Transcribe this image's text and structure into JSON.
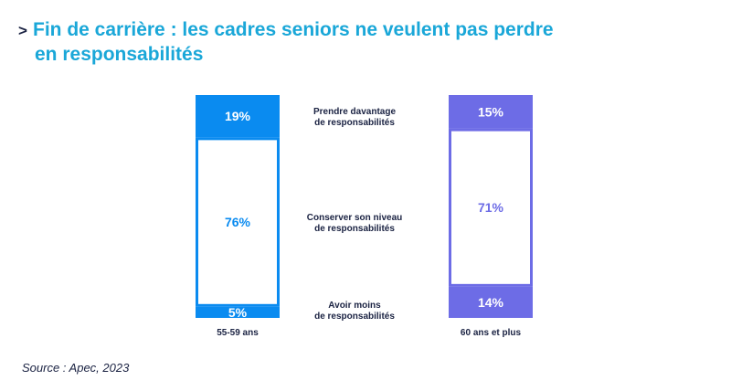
{
  "title": {
    "arrow": ">",
    "line1": "Fin de carrière : les cadres seniors ne veulent pas perdre",
    "line2": "en responsabilités"
  },
  "source": "Source : Apec, 2023",
  "colors": {
    "series1": "#0a8bf0",
    "series2": "#6d6ce6",
    "text": "#1a2242",
    "title": "#1aa7d8"
  },
  "chart_data": {
    "type": "bar",
    "stacked": true,
    "title": "Fin de carrière : les cadres seniors ne veulent pas perdre en responsabilités",
    "categories": [
      "55-59 ans",
      "60 ans et plus"
    ],
    "segment_labels": [
      [
        "Prendre davantage",
        "de responsabilités"
      ],
      [
        "Conserver son niveau",
        "de responsabilités"
      ],
      [
        "Avoir moins",
        "de responsabilités"
      ]
    ],
    "series": [
      {
        "name": "Prendre davantage de responsabilités",
        "values": [
          19,
          15
        ],
        "labels": [
          "19%",
          "15%"
        ]
      },
      {
        "name": "Conserver son niveau de responsabilités",
        "values": [
          76,
          71
        ],
        "labels": [
          "76%",
          "71%"
        ]
      },
      {
        "name": "Avoir moins de responsabilités",
        "values": [
          5,
          14
        ],
        "labels": [
          "5%",
          "14%"
        ]
      }
    ],
    "ylim": [
      0,
      100
    ]
  }
}
